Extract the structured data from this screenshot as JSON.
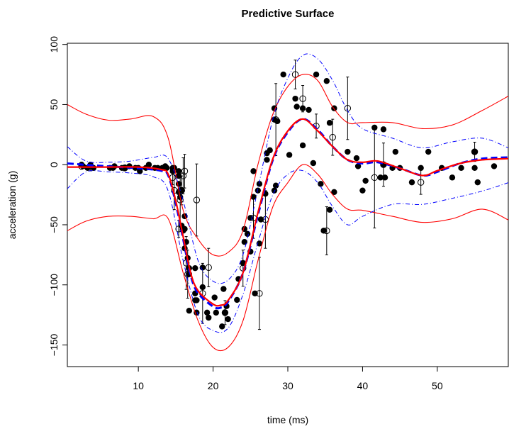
{
  "chart_data": {
    "type": "scatter",
    "title": "Predictive Surface",
    "xlabel": "time (ms)",
    "ylabel": "acceleration (g)",
    "xlim": [
      0.5,
      59.5
    ],
    "ylim": [
      -168,
      101
    ],
    "xticks": [
      10,
      20,
      30,
      40,
      50
    ],
    "yticks": [
      -150,
      -100,
      -50,
      0,
      50,
      100
    ],
    "grid": false,
    "legend": "none",
    "colors": {
      "mean": "#ff0000",
      "quantile": "#ff0000",
      "alt_mean": "#0000ff",
      "alt_quantile": "#0000ff",
      "points": "#000000"
    },
    "series": [
      {
        "role": "observed",
        "style": "filled-points",
        "x": [
          2.4,
          2.6,
          3.2,
          3.6,
          4.0,
          6.2,
          6.6,
          6.8,
          7.8,
          8.2,
          8.8,
          9.6,
          10.0,
          10.2,
          11.0,
          11.4,
          12.2,
          12.6,
          13.2,
          13.6,
          13.8,
          14.6,
          14.6,
          14.8,
          15.4,
          15.4,
          15.4,
          15.4,
          15.6,
          15.6,
          15.8,
          15.8,
          16.0,
          16.0,
          16.2,
          16.2,
          16.2,
          16.4,
          16.6,
          16.8,
          16.8,
          16.8,
          17.6,
          17.6,
          17.6,
          17.8,
          17.8,
          18.6,
          18.6,
          19.2,
          19.4,
          20.2,
          20.4,
          21.2,
          21.4,
          21.6,
          21.8,
          22.0,
          23.2,
          23.4,
          24.0,
          24.2,
          24.2,
          24.6,
          25.0,
          25.0,
          25.4,
          25.4,
          25.6,
          26.0,
          26.2,
          26.2,
          26.4,
          27.0,
          27.2,
          27.2,
          27.6,
          28.2,
          28.2,
          28.2,
          28.4,
          28.6,
          29.4,
          30.2,
          31.0,
          31.2,
          32.0,
          32.0,
          32.8,
          33.4,
          33.8,
          34.4,
          34.8,
          35.2,
          35.6,
          35.6,
          36.2,
          36.2,
          38.0,
          39.2,
          39.4,
          40.0,
          40.4,
          41.6,
          42.4,
          42.8,
          42.8,
          43.0,
          44.0,
          44.4,
          45.0,
          46.6,
          47.8,
          48.8,
          50.6,
          52.0,
          53.2,
          55.0,
          55.0,
          55.4,
          57.6
        ],
        "y": [
          0.0,
          -1.3,
          -2.7,
          0.0,
          -2.7,
          -2.7,
          -2.7,
          -1.3,
          -2.7,
          -2.7,
          -1.3,
          -2.7,
          -2.7,
          -5.4,
          -2.7,
          0.0,
          -2.7,
          -2.7,
          -2.7,
          -1.3,
          -2.7,
          -2.7,
          -5.4,
          -2.7,
          -5.4,
          -9.3,
          -16.0,
          -22.8,
          -27.0,
          -21.4,
          -21.4,
          -50.8,
          -53.5,
          -54.9,
          -42.9,
          -53.5,
          -69.6,
          -64.3,
          -77.7,
          -86.1,
          -91.1,
          -121.5,
          -112.8,
          -107.1,
          -86.1,
          -112.8,
          -123.1,
          -85.6,
          -101.9,
          -123.1,
          -127.3,
          -110.5,
          -123.1,
          -134.6,
          -103.4,
          -123.1,
          -117.7,
          -128.5,
          -112.5,
          -95.1,
          -81.8,
          -53.5,
          -64.3,
          -57.6,
          -72.3,
          -44.3,
          -26.8,
          -5.4,
          -107.1,
          -21.5,
          -65.6,
          -16.0,
          -45.6,
          -24.2,
          9.5,
          4.0,
          12.0,
          -21.5,
          37.5,
          46.9,
          -17.4,
          36.2,
          75.0,
          8.1,
          54.9,
          48.2,
          46.9,
          16.0,
          45.6,
          1.3,
          75.0,
          -16.0,
          -54.9,
          69.6,
          34.8,
          -37.5,
          -22.8,
          46.9,
          10.7,
          5.4,
          -1.3,
          -21.5,
          -13.4,
          30.8,
          -10.7,
          29.4,
          0.0,
          -10.7,
          -2.7,
          10.7,
          -2.7,
          -14.7,
          -2.7,
          10.7,
          -2.7,
          -10.7,
          -2.7,
          -2.7,
          10.7,
          -14.7,
          -1.3
        ]
      },
      {
        "role": "inputs",
        "style": "open-circles-with-error-bars",
        "x": [
          2.4,
          3.6,
          8.2,
          14.6,
          14.8,
          15.4,
          15.6,
          15.8,
          16.0,
          16.2,
          16.4,
          16.6,
          17.8,
          18.6,
          19.4,
          21.6,
          24.0,
          25.4,
          26.2,
          27.0,
          28.4,
          31.0,
          32.0,
          33.8,
          35.2,
          36.0,
          38.0,
          41.6,
          42.8,
          47.8,
          55.0
        ],
        "y": [
          -1.3,
          -2.7,
          -2.7,
          -10.7,
          -21.4,
          -53.5,
          -29.4,
          -21.4,
          -9.3,
          -5.4,
          -81.8,
          -91.1,
          -29.4,
          -107.1,
          -85.6,
          -123.1,
          -86.1,
          -44.3,
          -107.1,
          -45.6,
          37.5,
          75.0,
          54.9,
          32.1,
          -55.0,
          22.8,
          46.9,
          -10.7,
          0.0,
          -14.7,
          10.7
        ],
        "err": [
          2.5,
          2.5,
          2.5,
          6,
          16,
          7,
          25,
          12,
          15,
          14,
          22,
          20,
          30,
          25,
          16,
          10,
          15,
          17,
          30,
          24,
          30,
          12,
          11,
          10,
          20,
          15,
          26,
          42,
          18,
          10,
          8
        ]
      },
      {
        "name": "",
        "role": "predictive-mean",
        "style": "solid",
        "x": [
          0.5,
          5,
          10,
          13,
          14,
          15,
          16,
          17,
          18,
          20,
          21,
          22,
          24,
          26,
          28,
          30,
          32,
          34,
          36,
          38,
          40,
          42,
          45,
          48,
          50,
          53,
          56,
          59.5
        ],
        "y": [
          -2,
          -2,
          -2,
          -4,
          -8,
          -30,
          -60,
          -90,
          -105,
          -116,
          -117,
          -113,
          -90,
          -40,
          5,
          28,
          38,
          28,
          15,
          4,
          2,
          3,
          -3,
          -9,
          -5,
          1,
          4,
          5
        ]
      },
      {
        "name": "",
        "role": "upper-quantile",
        "style": "solid",
        "x": [
          0.5,
          3,
          6,
          9,
          12,
          14,
          16,
          18,
          20,
          22,
          24,
          26,
          28,
          30,
          32,
          34,
          36,
          38,
          40,
          44,
          48,
          52,
          56,
          59.5
        ],
        "y": [
          50,
          42,
          37,
          38,
          40,
          22,
          -38,
          -62,
          -75,
          -73,
          -55,
          0,
          42,
          65,
          75,
          70,
          48,
          35,
          35,
          35,
          30,
          33,
          45,
          57
        ]
      },
      {
        "name": "",
        "role": "lower-quantile",
        "style": "solid",
        "x": [
          0.5,
          3,
          6,
          9,
          12,
          14,
          16,
          18,
          20,
          22,
          24,
          26,
          28,
          30,
          32,
          34,
          36,
          38,
          40,
          44,
          48,
          52,
          56,
          59.5
        ],
        "y": [
          -55,
          -47,
          -43,
          -43,
          -45,
          -45,
          -90,
          -130,
          -152,
          -152,
          -130,
          -80,
          -35,
          -15,
          0,
          -8,
          -25,
          -37,
          -38,
          -43,
          -48,
          -45,
          -37,
          -46
        ]
      },
      {
        "name": "",
        "role": "alt-mean",
        "style": "dashed",
        "x": [
          0.5,
          5,
          10,
          13,
          14,
          15,
          16,
          17,
          18,
          20,
          21,
          22,
          24,
          26,
          28,
          30,
          32,
          34,
          36,
          38,
          40,
          42,
          45,
          48,
          50,
          53,
          56,
          59.5
        ],
        "y": [
          1,
          -1,
          -3,
          -5,
          -9,
          -32,
          -62,
          -92,
          -107,
          -118,
          -119,
          -114,
          -90,
          -42,
          4,
          27,
          38,
          29,
          15,
          4,
          1,
          2,
          -3,
          -9,
          -6,
          1,
          5,
          6
        ]
      },
      {
        "name": "",
        "role": "alt-upper-quantile",
        "style": "dash-dot",
        "x": [
          0.5,
          3,
          6,
          9,
          12,
          14,
          16,
          18,
          20,
          22,
          24,
          26,
          28,
          30,
          32,
          34,
          36,
          38,
          40,
          44,
          48,
          52,
          56,
          59.5
        ],
        "y": [
          15,
          3,
          2,
          3,
          6,
          5,
          -30,
          -80,
          -97,
          -96,
          -75,
          -20,
          38,
          72,
          91,
          88,
          70,
          45,
          30,
          22,
          14,
          19,
          22,
          14
        ]
      },
      {
        "name": "",
        "role": "alt-lower-quantile",
        "style": "dash-dot",
        "x": [
          0.5,
          3,
          6,
          9,
          12,
          14,
          16,
          18,
          20,
          22,
          24,
          26,
          28,
          30,
          32,
          34,
          36,
          38,
          40,
          44,
          48,
          52,
          56,
          59.5
        ],
        "y": [
          -20,
          -6,
          -6,
          -7,
          -10,
          -22,
          -80,
          -125,
          -138,
          -136,
          -108,
          -65,
          -25,
          -8,
          -5,
          -15,
          -35,
          -50,
          -43,
          -33,
          -33,
          -28,
          -22,
          -15
        ]
      }
    ]
  }
}
